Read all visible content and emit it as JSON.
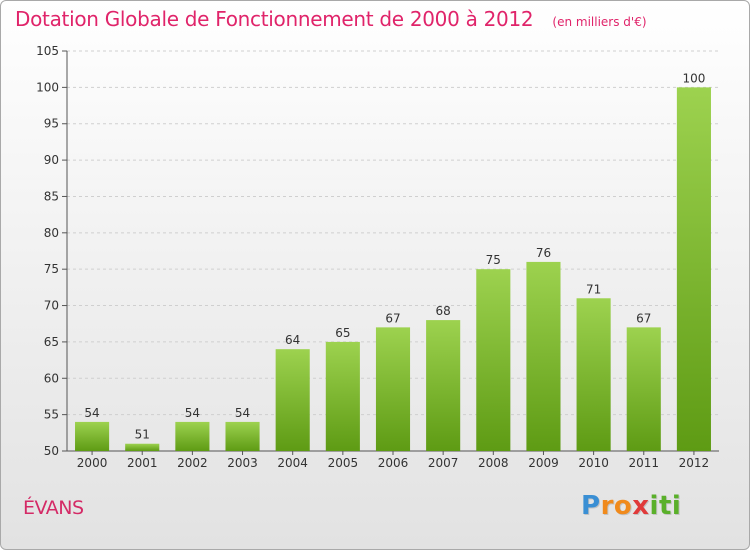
{
  "header": {
    "title": "Dotation Globale de Fonctionnement de 2000 à 2012",
    "unit": "(en milliers d'€)"
  },
  "commune": "ÉVANS",
  "logo": {
    "text": "Proxiti",
    "letters": [
      {
        "ch": "P",
        "color": "#3a8fd4"
      },
      {
        "ch": "r",
        "color": "#f08a1c"
      },
      {
        "ch": "o",
        "color": "#f08a1c"
      },
      {
        "ch": "x",
        "color": "#e03a3a"
      },
      {
        "ch": "i",
        "color": "#5ab02a"
      },
      {
        "ch": "t",
        "color": "#5ab02a"
      },
      {
        "ch": "i",
        "color": "#5ab02a"
      }
    ]
  },
  "colors": {
    "bar_top": "#9dd24f",
    "bar_bottom": "#5e9b14",
    "grid": "#cfcfcf",
    "axis": "#555555",
    "text": "#333333",
    "accent": "#e0246a"
  },
  "chart_data": {
    "type": "bar",
    "title": "Dotation Globale de Fonctionnement de 2000 à 2012",
    "xlabel": "",
    "ylabel": "",
    "categories": [
      "2000",
      "2001",
      "2002",
      "2003",
      "2004",
      "2005",
      "2006",
      "2007",
      "2008",
      "2009",
      "2010",
      "2011",
      "2012"
    ],
    "values": [
      54,
      51,
      54,
      54,
      64,
      65,
      67,
      68,
      75,
      76,
      71,
      67,
      100
    ],
    "ylim": [
      50,
      105
    ],
    "yticks": [
      50,
      55,
      60,
      65,
      70,
      75,
      80,
      85,
      90,
      95,
      100,
      105
    ],
    "grid": true
  }
}
